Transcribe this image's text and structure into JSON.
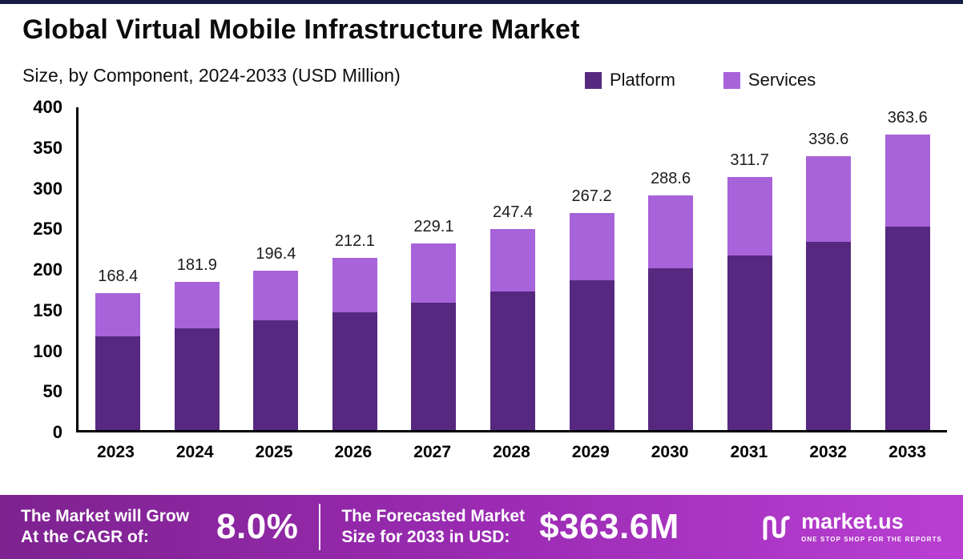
{
  "header": {
    "title": "Global Virtual Mobile Infrastructure Market",
    "subtitle": "Size, by Component, 2024-2033 (USD Million)"
  },
  "legend": {
    "items": [
      {
        "label": "Platform",
        "color": "#56287f"
      },
      {
        "label": "Services",
        "color": "#a763d9"
      }
    ]
  },
  "chart_data": {
    "type": "bar",
    "stacked": true,
    "title": "Global Virtual Mobile Infrastructure Market Size, by Component, 2024-2033 (USD Million)",
    "categories": [
      "2023",
      "2024",
      "2025",
      "2026",
      "2027",
      "2028",
      "2029",
      "2030",
      "2031",
      "2032",
      "2033"
    ],
    "series": [
      {
        "name": "Platform",
        "color": "#56287f",
        "values": [
          115,
          125,
          135,
          145,
          157,
          170,
          184,
          199,
          215,
          232,
          250
        ]
      },
      {
        "name": "Services",
        "color": "#a763d9",
        "values": [
          53.4,
          56.9,
          61.4,
          67.1,
          72.1,
          77.4,
          83.2,
          89.6,
          96.7,
          104.6,
          113.6
        ]
      }
    ],
    "totals": [
      168.4,
      181.9,
      196.4,
      212.1,
      229.1,
      247.4,
      267.2,
      288.6,
      311.7,
      336.6,
      363.6
    ],
    "ylim": [
      0,
      400
    ],
    "yticks": [
      0,
      50,
      100,
      150,
      200,
      250,
      300,
      350,
      400
    ],
    "xlabel": "",
    "ylabel": "",
    "grid": false,
    "legend_position": "top-right"
  },
  "footer": {
    "cagr_label_line1": "The Market will Grow",
    "cagr_label_line2": "At the CAGR of:",
    "cagr_value": "8.0%",
    "forecast_label_line1": "The Forecasted Market",
    "forecast_label_line2": "Size for 2033 in USD:",
    "forecast_value": "$363.6M",
    "brand_name": "market.us",
    "brand_tagline": "ONE STOP SHOP FOR THE REPORTS"
  }
}
